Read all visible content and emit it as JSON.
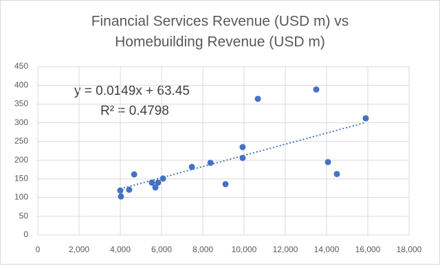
{
  "chart_data": {
    "type": "scatter",
    "title": [
      "Financial Services Revenue (USD m) vs",
      "Homebuilding Revenue (USD m)"
    ],
    "x": [
      4000,
      4030,
      4430,
      4670,
      5530,
      5700,
      5830,
      6070,
      7470,
      8370,
      9100,
      9930,
      9930,
      10670,
      13500,
      14070,
      14500,
      15900
    ],
    "values": [
      119,
      103,
      121,
      162,
      140,
      127,
      140,
      151,
      182,
      193,
      136,
      235,
      206,
      364,
      389,
      195,
      163,
      312
    ],
    "color": "#4472c4",
    "xlim": [
      0,
      18000
    ],
    "xticks": [
      0,
      {
        "value": 2000,
        "label": "2,000"
      },
      {
        "value": 4000,
        "label": "4,000"
      },
      {
        "value": 6000,
        "label": "6,000"
      },
      {
        "value": 8000,
        "label": "8,000"
      },
      {
        "value": 10000,
        "label": "10,000"
      },
      {
        "value": 12000,
        "label": "12,000"
      },
      {
        "value": 14000,
        "label": "14,000"
      },
      {
        "value": 16000,
        "label": "16,000"
      },
      {
        "value": 18000,
        "label": "18,000"
      }
    ],
    "ylim": [
      0,
      450
    ],
    "yticks": [
      0,
      50,
      100,
      150,
      200,
      250,
      300,
      350,
      400,
      450
    ],
    "grid": true,
    "trendline": {
      "equation": "y = 0.0149x + 63.45",
      "r_squared": "R² = 0.4798"
    }
  }
}
